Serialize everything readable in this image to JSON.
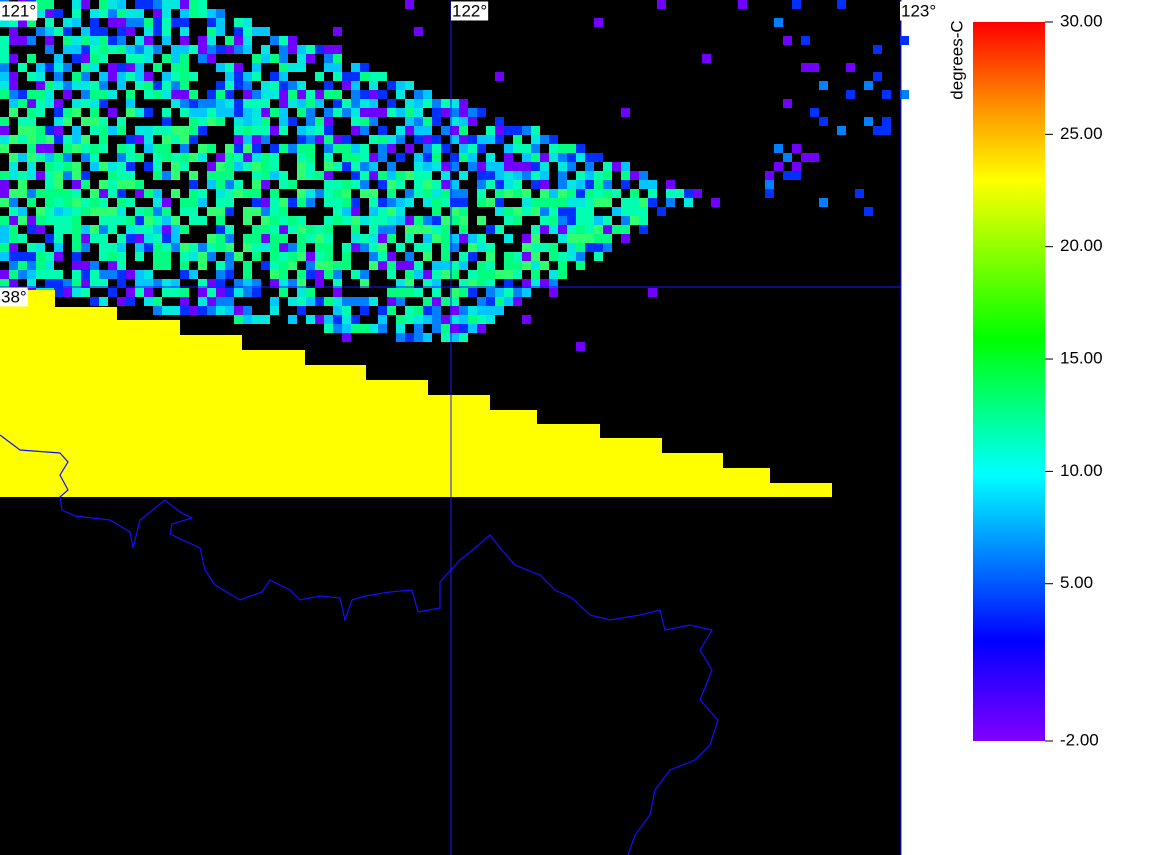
{
  "map": {
    "lon_labels": [
      "121°",
      "122°",
      "123°"
    ],
    "lat_labels": [
      "38°"
    ]
  },
  "colorbar": {
    "title": "degrees-C",
    "range": [
      -2,
      30
    ],
    "ticks": [
      {
        "value": 30,
        "label": "30.00"
      },
      {
        "value": 25,
        "label": "25.00"
      },
      {
        "value": 20,
        "label": "20.00"
      },
      {
        "value": 15,
        "label": "15.00"
      },
      {
        "value": 10,
        "label": "10.00"
      },
      {
        "value": 5,
        "label": "5.00"
      },
      {
        "value": -2,
        "label": "-2.00"
      }
    ]
  }
}
